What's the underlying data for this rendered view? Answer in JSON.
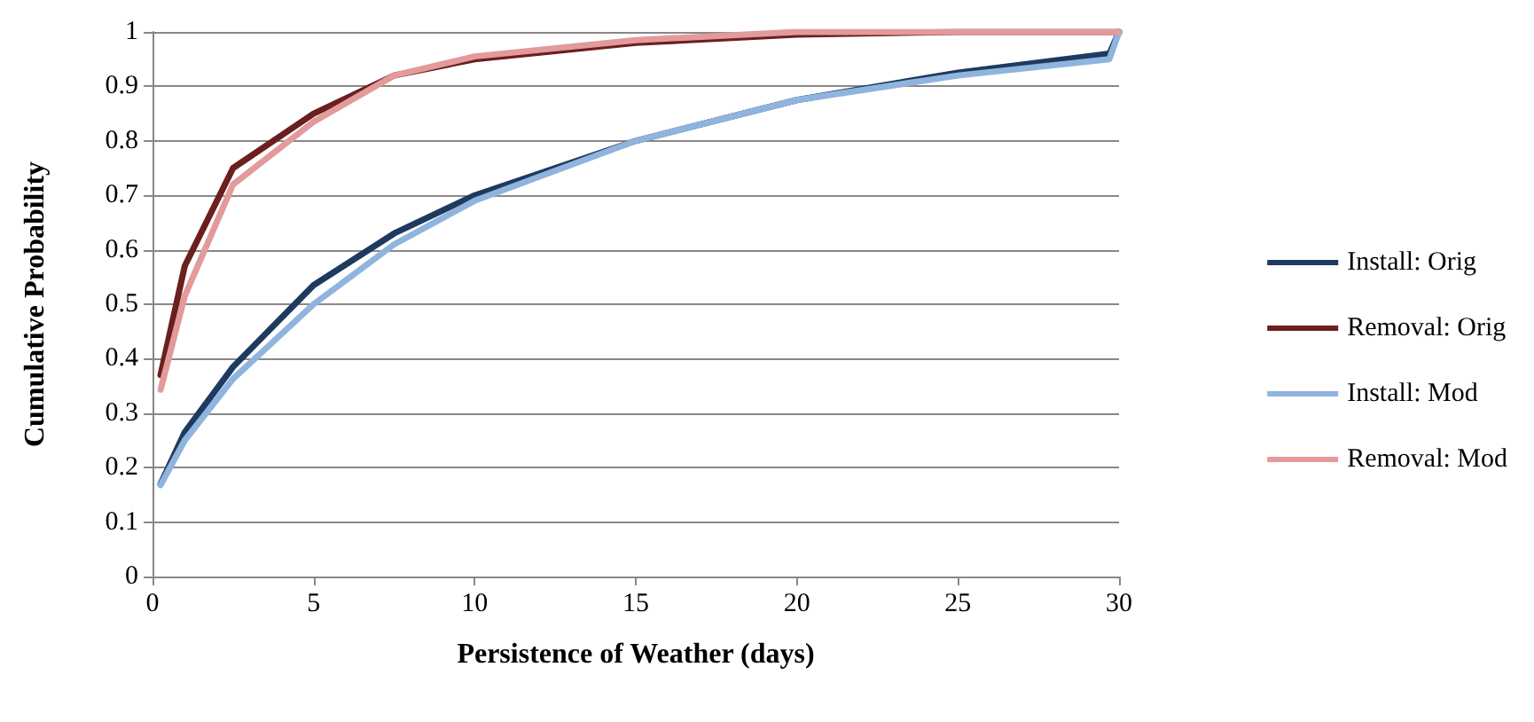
{
  "chart_data": {
    "type": "line",
    "xlabel": "Persistence of Weather (days)",
    "ylabel": "Cumulative Probability",
    "xlim": [
      0,
      30
    ],
    "xticks": [
      0,
      5,
      10,
      15,
      20,
      25,
      30
    ],
    "ylim": [
      0,
      1
    ],
    "yticks": [
      0,
      0.1,
      0.2,
      0.3,
      0.4,
      0.5,
      0.6,
      0.7,
      0.8,
      0.9,
      1
    ],
    "grid": "y",
    "legend": "right",
    "marker": "none",
    "line_style": "solid",
    "series": [
      {
        "name": "Install: Orig",
        "color": "#1f3a5f",
        "x": [
          0.25,
          1,
          2.5,
          5,
          7.5,
          10,
          15,
          20,
          25,
          29.7,
          30
        ],
        "values": [
          0.17,
          0.265,
          0.385,
          0.535,
          0.63,
          0.7,
          0.8,
          0.875,
          0.925,
          0.96,
          1
        ]
      },
      {
        "name": "Removal: Orig",
        "color": "#6b1f1f",
        "x": [
          0.25,
          1,
          2.5,
          5,
          7.5,
          10,
          15,
          20,
          25,
          30
        ],
        "values": [
          0.37,
          0.57,
          0.75,
          0.85,
          0.92,
          0.95,
          0.98,
          0.995,
          1,
          1
        ]
      },
      {
        "name": "Install: Mod",
        "color": "#8fb4de",
        "x": [
          0.25,
          1,
          2.5,
          5,
          7.5,
          10,
          15,
          20,
          25,
          29.7,
          30
        ],
        "values": [
          0.168,
          0.25,
          0.363,
          0.5,
          0.61,
          0.69,
          0.8,
          0.875,
          0.92,
          0.95,
          1
        ]
      },
      {
        "name": "Removal: Mod",
        "color": "#e39a9a",
        "x": [
          0.25,
          1,
          2.5,
          5,
          7.5,
          10,
          15,
          20,
          25,
          30
        ],
        "values": [
          0.343,
          0.515,
          0.72,
          0.835,
          0.92,
          0.955,
          0.985,
          1,
          1,
          1
        ]
      }
    ]
  }
}
